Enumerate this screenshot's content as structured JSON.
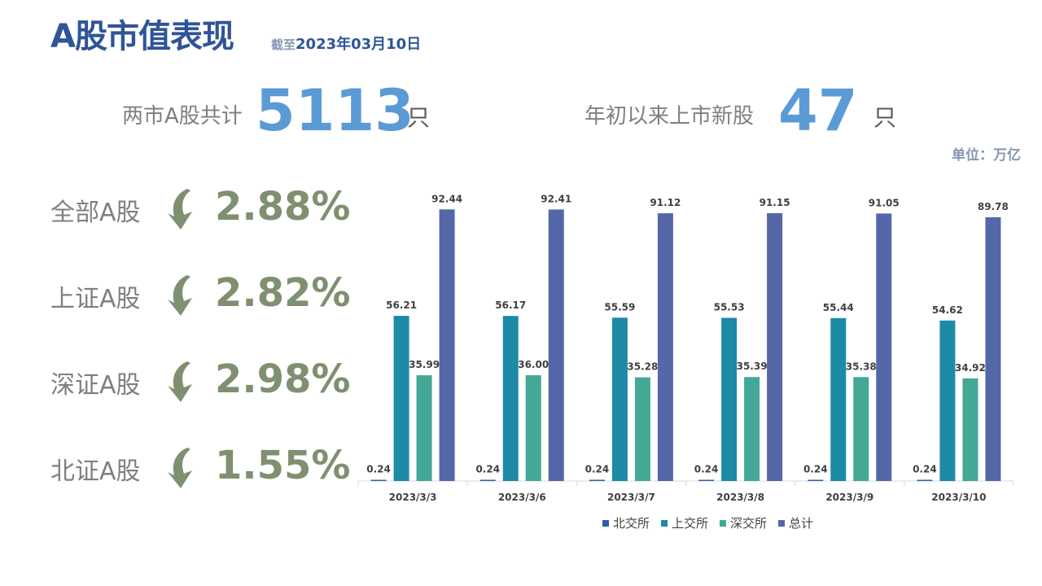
{
  "header": {
    "title": "A股市值表现",
    "subtitle_prefix": "截至",
    "subtitle_date": "2023年03月10日"
  },
  "stats": [
    {
      "label": "两市A股共计",
      "value": "5113",
      "unit": "只"
    },
    {
      "label": "年初以来上市新股",
      "value": "47",
      "unit": "只"
    }
  ],
  "unit_note": "单位：万亿",
  "metrics": [
    {
      "label": "全部A股",
      "value": "2.88%",
      "direction": "down"
    },
    {
      "label": "上证A股",
      "value": "2.82%",
      "direction": "down"
    },
    {
      "label": "深证A股",
      "value": "2.98%",
      "direction": "down"
    },
    {
      "label": "北证A股",
      "value": "1.55%",
      "direction": "down"
    }
  ],
  "colors": {
    "accent": "#2f5597",
    "stat_number": "#5b9bd5",
    "metric_value": "#7f9070",
    "arrow": "#7f9070"
  },
  "chart_data": {
    "type": "bar",
    "categories": [
      "2023/3/3",
      "2023/3/6",
      "2023/3/7",
      "2023/3/8",
      "2023/3/9",
      "2023/3/10"
    ],
    "series": [
      {
        "name": "北交所",
        "color": "#2e5fa3",
        "values": [
          0.24,
          0.24,
          0.24,
          0.24,
          0.24,
          0.24
        ]
      },
      {
        "name": "上交所",
        "color": "#1d8aa6",
        "values": [
          56.21,
          56.17,
          55.59,
          55.53,
          55.44,
          54.62
        ]
      },
      {
        "name": "深交所",
        "color": "#43a896",
        "values": [
          35.99,
          36.0,
          35.28,
          35.39,
          35.38,
          34.92
        ]
      },
      {
        "name": "总计",
        "color": "#5467a8",
        "values": [
          92.44,
          92.41,
          91.12,
          91.15,
          91.05,
          89.78
        ]
      }
    ],
    "ylim": [
      0,
      100
    ],
    "grid": false,
    "legend": "bottom"
  }
}
